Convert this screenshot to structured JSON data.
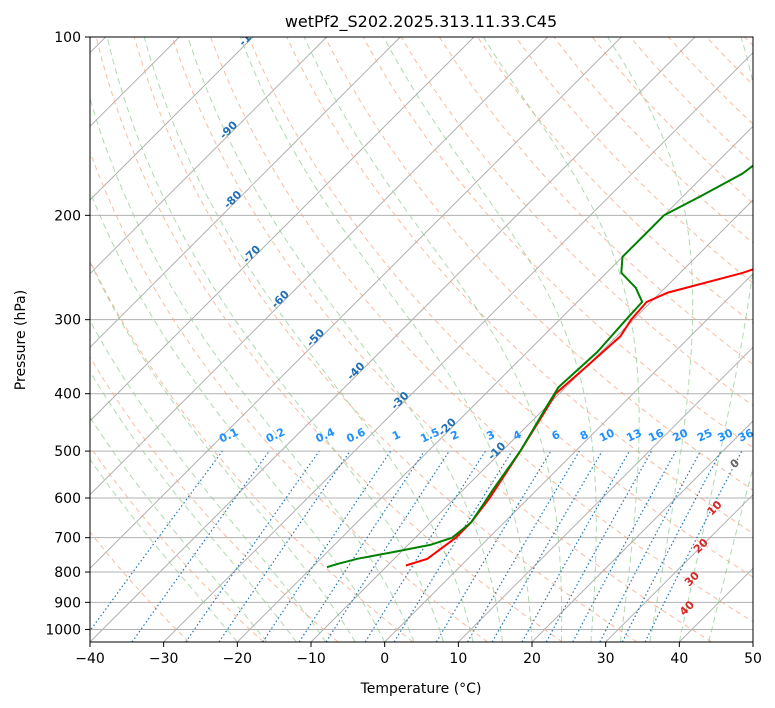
{
  "chart_data": {
    "type": "line",
    "subtype": "skew-t log-p diagram",
    "title": "wetPf2_S202.2025.313.11.33.C45",
    "xlabel": "Temperature (°C)",
    "ylabel": "Pressure (hPa)",
    "xlim": [
      -40,
      50
    ],
    "ylim": [
      1050,
      100
    ],
    "x_ticks": [
      -40,
      -30,
      -20,
      -10,
      0,
      10,
      20,
      30,
      40,
      50
    ],
    "y_ticks": [
      100,
      200,
      300,
      400,
      500,
      600,
      700,
      800,
      900,
      1000
    ],
    "grid": true,
    "series": [
      {
        "name": "temperature",
        "color": "#ff0000",
        "points": [
          {
            "p": 780,
            "t": -7.5
          },
          {
            "p": 760,
            "t": -5.5
          },
          {
            "p": 700,
            "t": -4.5
          },
          {
            "p": 660,
            "t": -4.5
          },
          {
            "p": 600,
            "t": -5.3
          },
          {
            "p": 500,
            "t": -7.5
          },
          {
            "p": 430,
            "t": -9.5
          },
          {
            "p": 400,
            "t": -10.5
          },
          {
            "p": 360,
            "t": -10.0
          },
          {
            "p": 320,
            "t": -9.5
          },
          {
            "p": 300,
            "t": -10.3
          },
          {
            "p": 280,
            "t": -10.6
          },
          {
            "p": 270,
            "t": -9.0
          },
          {
            "p": 250,
            "t": -1.5
          },
          {
            "p": 230,
            "t": 4.0
          },
          {
            "p": 200,
            "t": 10.0
          },
          {
            "p": 175,
            "t": 18.0
          },
          {
            "p": 160,
            "t": 24.0
          },
          {
            "p": 150,
            "t": 28.0
          },
          {
            "p": 140,
            "t": 30.5
          },
          {
            "p": 125,
            "t": 35.0
          },
          {
            "p": 110,
            "t": 39.0
          },
          {
            "p": 100,
            "t": 42.0
          }
        ]
      },
      {
        "name": "dewpoint",
        "color": "#008000",
        "points": [
          {
            "p": 785,
            "t": -18.0
          },
          {
            "p": 775,
            "t": -17.0
          },
          {
            "p": 760,
            "t": -15.0
          },
          {
            "p": 740,
            "t": -11.0
          },
          {
            "p": 720,
            "t": -7.0
          },
          {
            "p": 700,
            "t": -5.0
          },
          {
            "p": 660,
            "t": -4.5
          },
          {
            "p": 620,
            "t": -5.2
          },
          {
            "p": 580,
            "t": -6.0
          },
          {
            "p": 500,
            "t": -7.5
          },
          {
            "p": 420,
            "t": -10.0
          },
          {
            "p": 390,
            "t": -11.0
          },
          {
            "p": 340,
            "t": -10.5
          },
          {
            "p": 300,
            "t": -11.0
          },
          {
            "p": 280,
            "t": -11.2
          },
          {
            "p": 265,
            "t": -14.0
          },
          {
            "p": 250,
            "t": -18.0
          },
          {
            "p": 235,
            "t": -20.0
          },
          {
            "p": 215,
            "t": -20.0
          },
          {
            "p": 200,
            "t": -20.0
          },
          {
            "p": 185,
            "t": -17.5
          },
          {
            "p": 170,
            "t": -15.0
          },
          {
            "p": 155,
            "t": -14.0
          },
          {
            "p": 145,
            "t": -14.5
          },
          {
            "p": 135,
            "t": -15.0
          },
          {
            "p": 125,
            "t": -15.5
          },
          {
            "p": 120,
            "t": -13.0
          },
          {
            "p": 116,
            "t": -5.0
          },
          {
            "p": 112,
            "t": -4.0
          },
          {
            "p": 105,
            "t": -3.5
          },
          {
            "p": 100,
            "t": -2.5
          }
        ]
      }
    ],
    "isotherm_labels": [
      "-100",
      "-90",
      "-80",
      "-70",
      "-60",
      "-50",
      "-40",
      "-30",
      "-20",
      "-10"
    ],
    "mixing_ratio_labels": [
      "0.1",
      "0.2",
      "0.4",
      "0.6",
      "1",
      "1.5",
      "2",
      "3",
      "4",
      "6",
      "8",
      "10",
      "13",
      "16",
      "20",
      "25",
      "30",
      "36"
    ],
    "dry_adiabat_labels": [
      "0",
      "10",
      "20",
      "30",
      "40"
    ],
    "colors": {
      "isotherm_grid": "#b0b0b0",
      "dry_adiabat": "#f4a582",
      "moist_adiabat": "#8fc98f",
      "mixing_ratio": "#1f77b4",
      "isotherm_label": "#1f6fb4",
      "mixing_label": "#1e90ff",
      "dry_label": "#d62728"
    }
  }
}
